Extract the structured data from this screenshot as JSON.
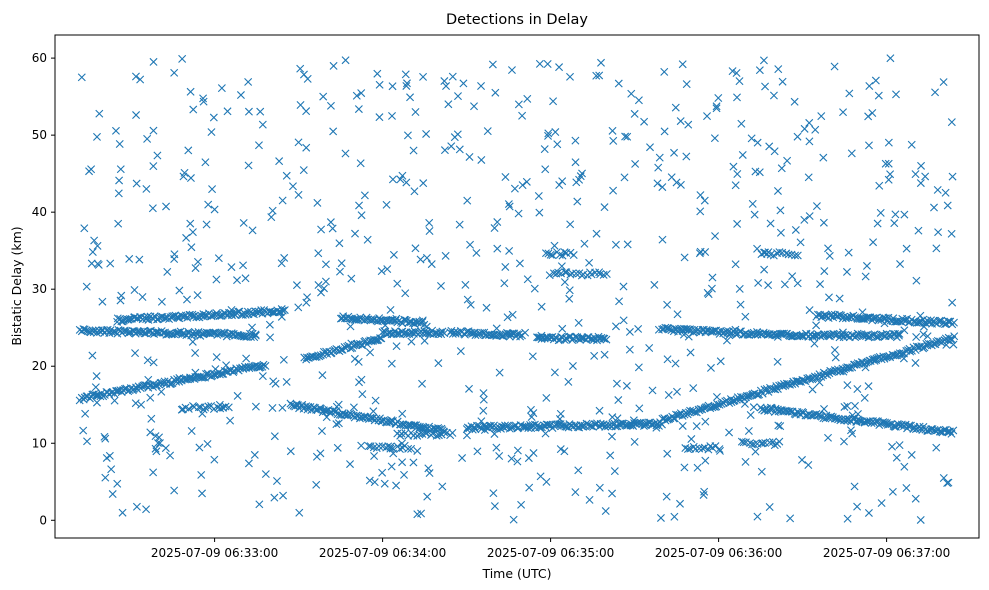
{
  "chart_data": {
    "type": "scatter",
    "title": "Detections in Delay",
    "xlabel": "Time (UTC)",
    "ylabel": "Bistatic Delay (km)",
    "marker": "x",
    "color": "#1f77b4",
    "grid": false,
    "legend": "none",
    "x_ticks": [
      "2025-07-09 06:33:00",
      "2025-07-09 06:34:00",
      "2025-07-09 06:35:00",
      "2025-07-09 06:36:00",
      "2025-07-09 06:37:00"
    ],
    "y_ticks": [
      "0",
      "10",
      "20",
      "30",
      "40",
      "50",
      "60"
    ],
    "xlim": [
      "2025-07-09 06:32:03",
      "2025-07-09 06:37:33"
    ],
    "ylim": [
      -2.3,
      63.0
    ],
    "data_range": {
      "x": [
        "2025-07-09 06:32:12",
        "2025-07-09 06:37:24"
      ],
      "y": [
        0,
        60
      ]
    },
    "tracks": [
      {
        "kind": "line",
        "x_start": "2025-07-09 06:32:12",
        "x_end": "2025-07-09 06:33:18",
        "y_start": 15.8,
        "y_end": 20.2
      },
      {
        "kind": "line",
        "x_start": "2025-07-09 06:33:32",
        "x_end": "2025-07-09 06:34:00",
        "y_start": 21.0,
        "y_end": 23.6
      },
      {
        "kind": "line",
        "x_start": "2025-07-09 06:34:00",
        "x_end": "2025-07-09 06:34:22",
        "y_start": 24.4,
        "y_end": 24.4
      },
      {
        "kind": "line",
        "x_start": "2025-07-09 06:34:24",
        "x_end": "2025-07-09 06:34:50",
        "y_start": 24.4,
        "y_end": 24.0
      },
      {
        "kind": "line",
        "x_start": "2025-07-09 06:34:55",
        "x_end": "2025-07-09 06:35:20",
        "y_start": 23.6,
        "y_end": 23.6
      },
      {
        "kind": "line",
        "x_start": "2025-07-09 06:32:12",
        "x_end": "2025-07-09 06:33:15",
        "y_start": 24.6,
        "y_end": 24.0
      },
      {
        "kind": "line",
        "x_start": "2025-07-09 06:32:25",
        "x_end": "2025-07-09 06:33:25",
        "y_start": 26.0,
        "y_end": 27.2
      },
      {
        "kind": "line",
        "x_start": "2025-07-09 06:33:45",
        "x_end": "2025-07-09 06:34:15",
        "y_start": 26.4,
        "y_end": 25.6
      },
      {
        "kind": "line",
        "x_start": "2025-07-09 06:33:27",
        "x_end": "2025-07-09 06:34:22",
        "y_start": 15.0,
        "y_end": 11.6
      },
      {
        "kind": "line",
        "x_start": "2025-07-09 06:34:30",
        "x_end": "2025-07-09 06:35:40",
        "y_start": 12.0,
        "y_end": 12.5
      },
      {
        "kind": "line",
        "x_start": "2025-07-09 06:35:40",
        "x_end": "2025-07-09 06:37:24",
        "y_start": 13.0,
        "y_end": 23.7
      },
      {
        "kind": "line",
        "x_start": "2025-07-09 06:36:15",
        "x_end": "2025-07-09 06:37:24",
        "y_start": 14.5,
        "y_end": 11.4
      },
      {
        "kind": "line",
        "x_start": "2025-07-09 06:35:40",
        "x_end": "2025-07-09 06:36:25",
        "y_start": 24.8,
        "y_end": 24.0
      },
      {
        "kind": "line",
        "x_start": "2025-07-09 06:36:25",
        "x_end": "2025-07-09 06:37:05",
        "y_start": 24.0,
        "y_end": 24.0
      },
      {
        "kind": "line",
        "x_start": "2025-07-09 06:36:35",
        "x_end": "2025-07-09 06:37:24",
        "y_start": 26.6,
        "y_end": 25.6
      },
      {
        "kind": "cluster",
        "x_start": "2025-07-09 06:32:48",
        "x_end": "2025-07-09 06:33:05",
        "y": 14.6
      },
      {
        "kind": "cluster",
        "x_start": "2025-07-09 06:33:55",
        "x_end": "2025-07-09 06:34:10",
        "y": 9.5
      },
      {
        "kind": "cluster",
        "x_start": "2025-07-09 06:34:05",
        "x_end": "2025-07-09 06:34:25",
        "y": 11.2
      },
      {
        "kind": "cluster",
        "x_start": "2025-07-09 06:34:58",
        "x_end": "2025-07-09 06:35:08",
        "y": 34.6
      },
      {
        "kind": "cluster",
        "x_start": "2025-07-09 06:35:00",
        "x_end": "2025-07-09 06:35:20",
        "y": 32.0
      },
      {
        "kind": "cluster",
        "x_start": "2025-07-09 06:36:15",
        "x_end": "2025-07-09 06:36:28",
        "y": 34.6
      },
      {
        "kind": "cluster",
        "x_start": "2025-07-09 06:36:08",
        "x_end": "2025-07-09 06:36:22",
        "y": 10.0
      },
      {
        "kind": "cluster",
        "x_start": "2025-07-09 06:35:48",
        "x_end": "2025-07-09 06:36:00",
        "y": 9.4
      }
    ],
    "clutter": {
      "count": 750,
      "x_range": [
        "2025-07-09 06:32:12",
        "2025-07-09 06:37:24"
      ],
      "y_range": [
        0,
        60
      ]
    }
  }
}
